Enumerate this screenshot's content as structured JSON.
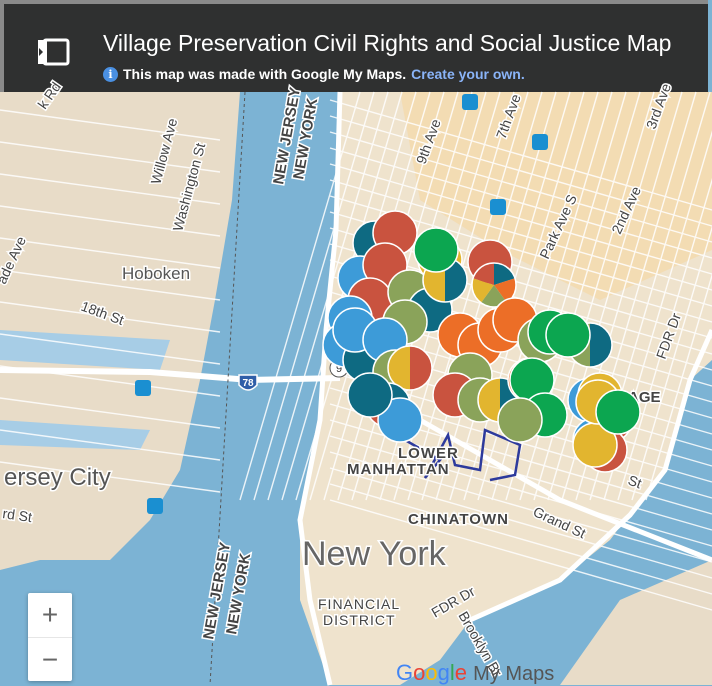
{
  "header": {
    "title": "Village Preservation Civil Rights and Social Justice Map",
    "info_text": "This map was made with Google My Maps.",
    "create_link": "Create your own.",
    "toggle_icon": "sidebar-toggle-icon",
    "info_icon": "info-icon"
  },
  "map": {
    "labels": {
      "rd": "k Rd",
      "willow": "Willow Ave",
      "washington": "Washington St",
      "nj_top": "NEW JERSEY",
      "ny_top": "NEW YORK",
      "ninth": "9th Ave",
      "seventh": "7th Ave",
      "third": "3rd Ave",
      "second": "2nd Ave",
      "park": "Park Ave S",
      "hoboken": "Hoboken",
      "ade": "ade Ave",
      "eighteenth": "18th St",
      "fdr_top": "FDR Dr",
      "route78": "78",
      "route9": "9",
      "village": "AGE",
      "jersey_city": "ersey City",
      "rd_st": "rd St",
      "lower": "LOWER",
      "manhattan": "MANHATTAN",
      "chinatown": "CHINATOWN",
      "grand": "Grand St",
      "st": "St",
      "new_york": "New York",
      "nj_bottom": "NEW JERSEY",
      "ny_bottom": "NEW YORK",
      "financial": "FINANCIAL",
      "district": "DISTRICT",
      "fdr_bottom": "FDR Dr",
      "brooklyn": "Brooklyn Br"
    },
    "marker_colors": {
      "red": "#c9533f",
      "teal": "#0e6a82",
      "blue": "#3d9bd8",
      "olive": "#8aa35a",
      "yellow": "#e2b52f",
      "orange": "#ec6e27",
      "green": "#0ca650"
    },
    "zoom_in": "+",
    "zoom_out": "−",
    "logo_google": "Google",
    "logo_mymaps": "My Maps"
  }
}
